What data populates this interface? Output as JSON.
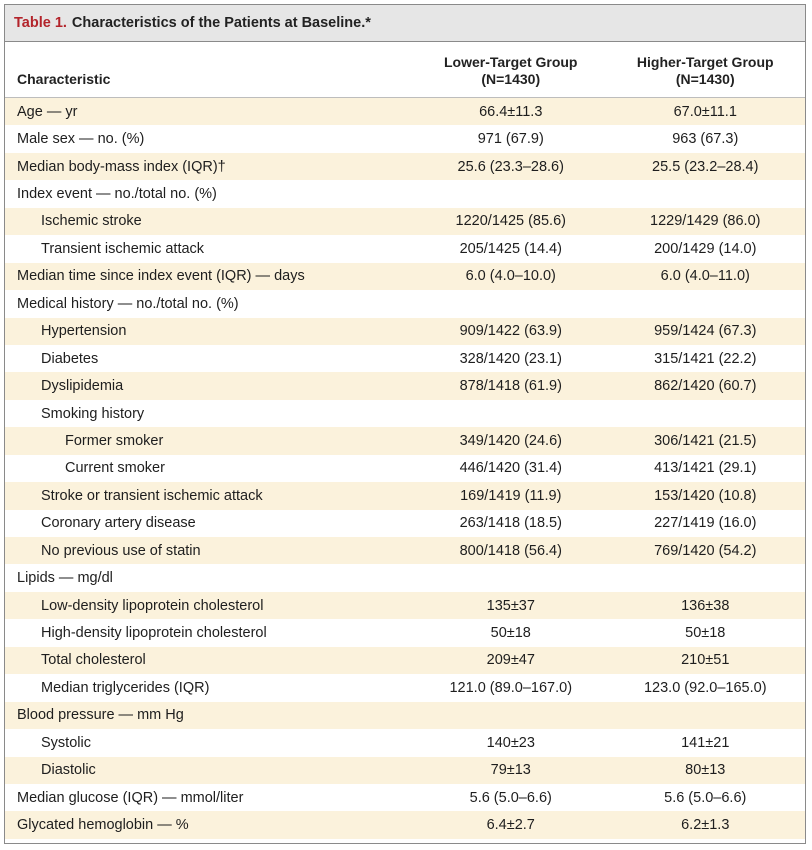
{
  "table": {
    "label": "Table 1.",
    "title": "Characteristics of the Patients at Baseline.*",
    "columns": {
      "characteristic": "Characteristic",
      "group_a_line1": "Lower-Target Group",
      "group_a_line2": "(N=1430)",
      "group_b_line1": "Higher-Target Group",
      "group_b_line2": "(N=1430)"
    },
    "rows": [
      {
        "label": "Age — yr",
        "a": "66.4±11.3",
        "b": "67.0±11.1"
      },
      {
        "label": "Male sex — no. (%)",
        "a": "971 (67.9)",
        "b": "963 (67.3)"
      },
      {
        "label": "Median body-mass index (IQR)†",
        "a": "25.6 (23.3–28.6)",
        "b": "25.5 (23.2–28.4)"
      },
      {
        "label": "Index event — no./total no. (%)",
        "a": "",
        "b": ""
      },
      {
        "label": "Ischemic stroke",
        "a": "1220/1425 (85.6)",
        "b": "1229/1429 (86.0)"
      },
      {
        "label": "Transient ischemic attack",
        "a": "205/1425 (14.4)",
        "b": "200/1429 (14.0)"
      },
      {
        "label": "Median time since index event (IQR) — days",
        "a": "6.0 (4.0–10.0)",
        "b": "6.0 (4.0–11.0)"
      },
      {
        "label": "Medical history — no./total no. (%)",
        "a": "",
        "b": ""
      },
      {
        "label": "Hypertension",
        "a": "909/1422 (63.9)",
        "b": "959/1424 (67.3)"
      },
      {
        "label": "Diabetes",
        "a": "328/1420 (23.1)",
        "b": "315/1421 (22.2)"
      },
      {
        "label": "Dyslipidemia",
        "a": "878/1418 (61.9)",
        "b": "862/1420 (60.7)"
      },
      {
        "label": "Smoking history",
        "a": "",
        "b": ""
      },
      {
        "label": "Former smoker",
        "a": "349/1420 (24.6)",
        "b": "306/1421 (21.5)"
      },
      {
        "label": "Current smoker",
        "a": "446/1420 (31.4)",
        "b": "413/1421 (29.1)"
      },
      {
        "label": "Stroke or transient ischemic attack",
        "a": "169/1419 (11.9)",
        "b": "153/1420 (10.8)"
      },
      {
        "label": "Coronary artery disease",
        "a": "263/1418 (18.5)",
        "b": "227/1419 (16.0)"
      },
      {
        "label": "No previous use of statin",
        "a": "800/1418 (56.4)",
        "b": "769/1420 (54.2)"
      },
      {
        "label": "Lipids — mg/dl",
        "a": "",
        "b": ""
      },
      {
        "label": "Low-density lipoprotein cholesterol",
        "a": "135±37",
        "b": "136±38"
      },
      {
        "label": "High-density lipoprotein cholesterol",
        "a": "50±18",
        "b": "50±18"
      },
      {
        "label": "Total cholesterol",
        "a": "209±47",
        "b": "210±51"
      },
      {
        "label": "Median triglycerides (IQR)",
        "a": "121.0 (89.0–167.0)",
        "b": "123.0 (92.0–165.0)"
      },
      {
        "label": "Blood pressure — mm Hg",
        "a": "",
        "b": ""
      },
      {
        "label": "Systolic",
        "a": "140±23",
        "b": "141±21"
      },
      {
        "label": "Diastolic",
        "a": "79±13",
        "b": "80±13"
      },
      {
        "label": "Median glucose (IQR) — mmol/liter",
        "a": "5.6 (5.0–6.6)",
        "b": "5.6 (5.0–6.6)"
      },
      {
        "label": "Glycated hemoglobin — %",
        "a": "6.4±2.7",
        "b": "6.2±1.3"
      }
    ]
  }
}
